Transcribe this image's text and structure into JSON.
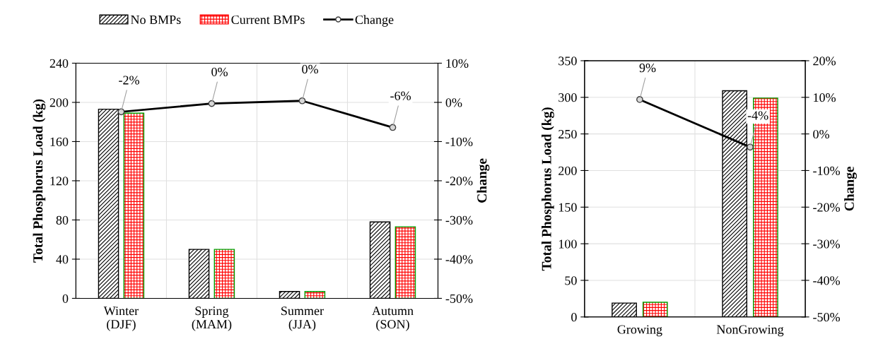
{
  "chart_data": [
    {
      "type": "bar",
      "categories": [
        "Winter\n(DJF)",
        "Spring\n(MAM)",
        "Summer\n(JJA)",
        "Autumn\n(SON)"
      ],
      "ylabel": "Total Phosphorus Load (kg)",
      "y2label": "Change",
      "ylim": [
        0,
        240
      ],
      "yticks": [
        0,
        40,
        80,
        120,
        160,
        200,
        240
      ],
      "y2lim": [
        -50,
        10
      ],
      "y2ticks": [
        {
          "value": -50,
          "label": "-50%"
        },
        {
          "value": -40,
          "label": "-40%"
        },
        {
          "value": -30,
          "label": "-30%"
        },
        {
          "value": -20,
          "label": "-20%"
        },
        {
          "value": -10,
          "label": "-10%"
        },
        {
          "value": 0,
          "label": "0%"
        },
        {
          "value": 10,
          "label": "10%"
        }
      ],
      "grid": true,
      "legend": "top",
      "series": [
        {
          "name": "No BMPs",
          "color": "#000000",
          "values": [
            193,
            50,
            7,
            78
          ]
        },
        {
          "name": "Current BMPs",
          "color": "#ff0000",
          "values": [
            189,
            50,
            7,
            73
          ]
        },
        {
          "name": "Change",
          "type": "line",
          "axis": "y2",
          "color": "#000000",
          "marker": "circle",
          "values": [
            -2.4,
            -0.3,
            0.4,
            -6.4
          ],
          "value_labels": [
            "-2%",
            "0%",
            "0%",
            "-6%"
          ]
        }
      ]
    },
    {
      "type": "bar",
      "categories": [
        "Growing",
        "NonGrowing"
      ],
      "ylabel": "Total Phosphorus Load (kg)",
      "y2label": "Change",
      "ylim": [
        0,
        350
      ],
      "yticks": [
        0,
        50,
        100,
        150,
        200,
        250,
        300,
        350
      ],
      "y2lim": [
        -50,
        20
      ],
      "y2ticks": [
        {
          "value": -50,
          "label": "-50%"
        },
        {
          "value": -40,
          "label": "-40%"
        },
        {
          "value": -30,
          "label": "-30%"
        },
        {
          "value": -20,
          "label": "-20%"
        },
        {
          "value": -10,
          "label": "-10%"
        },
        {
          "value": 0,
          "label": "0%"
        },
        {
          "value": 10,
          "label": "10%"
        },
        {
          "value": 20,
          "label": "20%"
        }
      ],
      "grid": true,
      "series": [
        {
          "color": "#000000",
          "values": [
            19,
            309
          ]
        },
        {
          "color": "#ff0000",
          "values": [
            20,
            299
          ]
        },
        {
          "type": "line",
          "axis": "y2",
          "color": "#000000",
          "marker": "circle",
          "values": [
            9.4,
            -3.6
          ],
          "value_labels": [
            "9%",
            "-4%"
          ]
        }
      ]
    }
  ]
}
